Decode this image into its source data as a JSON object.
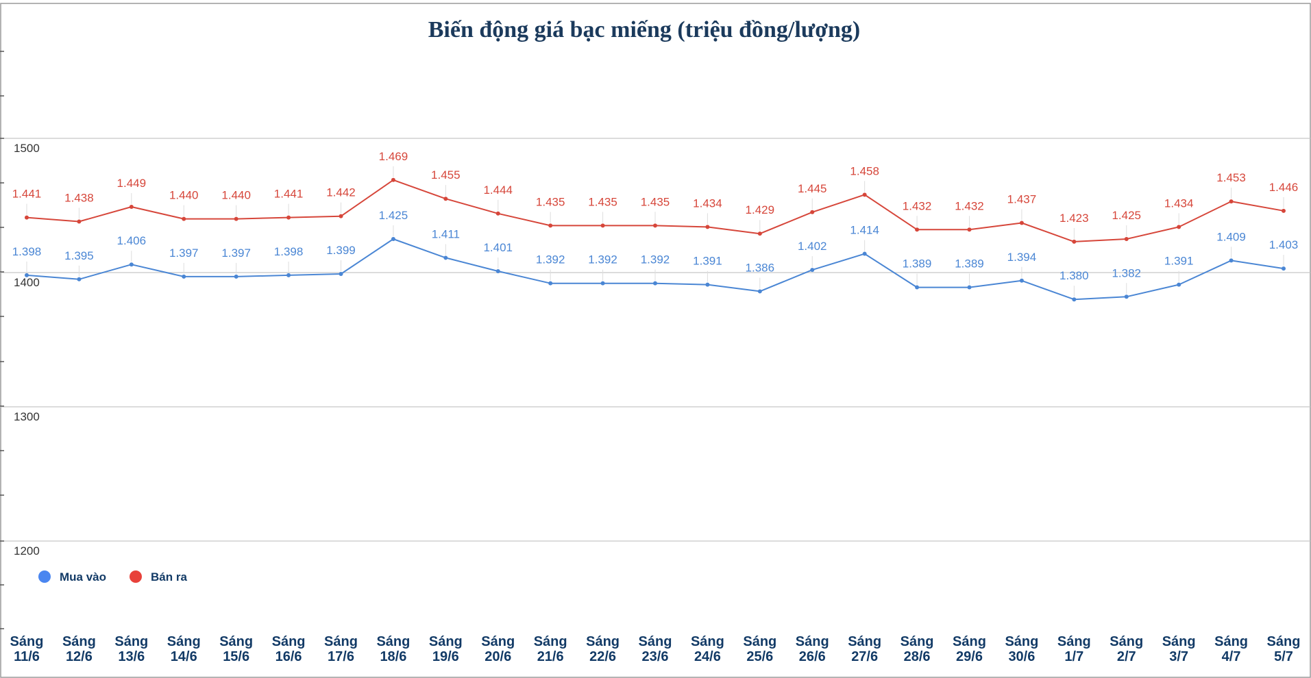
{
  "chart_data": {
    "type": "line",
    "title": "Biến động giá bạc miếng (triệu đồng/lượng)",
    "xlabel": "",
    "ylabel": "",
    "ylim": [
      1100,
      1500
    ],
    "yticks": [
      1200,
      1300,
      1400,
      1500
    ],
    "grid": true,
    "legend_position": "bottom-left",
    "categories": [
      [
        "Sáng",
        "11/6"
      ],
      [
        "Sáng",
        "12/6"
      ],
      [
        "Sáng",
        "13/6"
      ],
      [
        "Sáng",
        "14/6"
      ],
      [
        "Sáng",
        "15/6"
      ],
      [
        "Sáng",
        "16/6"
      ],
      [
        "Sáng",
        "17/6"
      ],
      [
        "Sáng",
        "18/6"
      ],
      [
        "Sáng",
        "19/6"
      ],
      [
        "Sáng",
        "20/6"
      ],
      [
        "Sáng",
        "21/6"
      ],
      [
        "Sáng",
        "22/6"
      ],
      [
        "Sáng",
        "23/6"
      ],
      [
        "Sáng",
        "24/6"
      ],
      [
        "Sáng",
        "25/6"
      ],
      [
        "Sáng",
        "26/6"
      ],
      [
        "Sáng",
        "27/6"
      ],
      [
        "Sáng",
        "28/6"
      ],
      [
        "Sáng",
        "29/6"
      ],
      [
        "Sáng",
        "30/6"
      ],
      [
        "Sáng",
        "1/7"
      ],
      [
        "Sáng",
        "2/7"
      ],
      [
        "Sáng",
        "3/7"
      ],
      [
        "Sáng",
        "4/7"
      ],
      [
        "Sáng",
        "5/7"
      ]
    ],
    "series": [
      {
        "name": "Mua vào",
        "color": "#4a86d4",
        "values": [
          1398,
          1395,
          1406,
          1397,
          1397,
          1398,
          1399,
          1425,
          1411,
          1401,
          1392,
          1392,
          1392,
          1391,
          1386,
          1402,
          1414,
          1389,
          1389,
          1394,
          1380,
          1382,
          1391,
          1409,
          1403
        ],
        "labels": [
          "1.398",
          "1.395",
          "1.406",
          "1.397",
          "1.397",
          "1.398",
          "1.399",
          "1.425",
          "1.411",
          "1.401",
          "1.392",
          "1.392",
          "1.392",
          "1.391",
          "1.386",
          "1.402",
          "1.414",
          "1.389",
          "1.389",
          "1.394",
          "1.380",
          "1.382",
          "1.391",
          "1.409",
          "1.403"
        ]
      },
      {
        "name": "Bán ra",
        "color": "#d6463a",
        "values": [
          1441,
          1438,
          1449,
          1440,
          1440,
          1441,
          1442,
          1469,
          1455,
          1444,
          1435,
          1435,
          1435,
          1434,
          1429,
          1445,
          1458,
          1432,
          1432,
          1437,
          1423,
          1425,
          1434,
          1453,
          1446
        ],
        "labels": [
          "1.441",
          "1.438",
          "1.449",
          "1.440",
          "1.440",
          "1.441",
          "1.442",
          "1.469",
          "1.455",
          "1.444",
          "1.435",
          "1.435",
          "1.435",
          "1.434",
          "1.429",
          "1.445",
          "1.458",
          "1.432",
          "1.432",
          "1.437",
          "1.423",
          "1.425",
          "1.434",
          "1.453",
          "1.446"
        ]
      }
    ]
  },
  "colors": {
    "title": "#1b3a5c",
    "axis_label": "#123a66",
    "grid": "#c8c8c8",
    "legend_marker_mua": "#4a86f0",
    "legend_marker_ban": "#e8413a"
  }
}
